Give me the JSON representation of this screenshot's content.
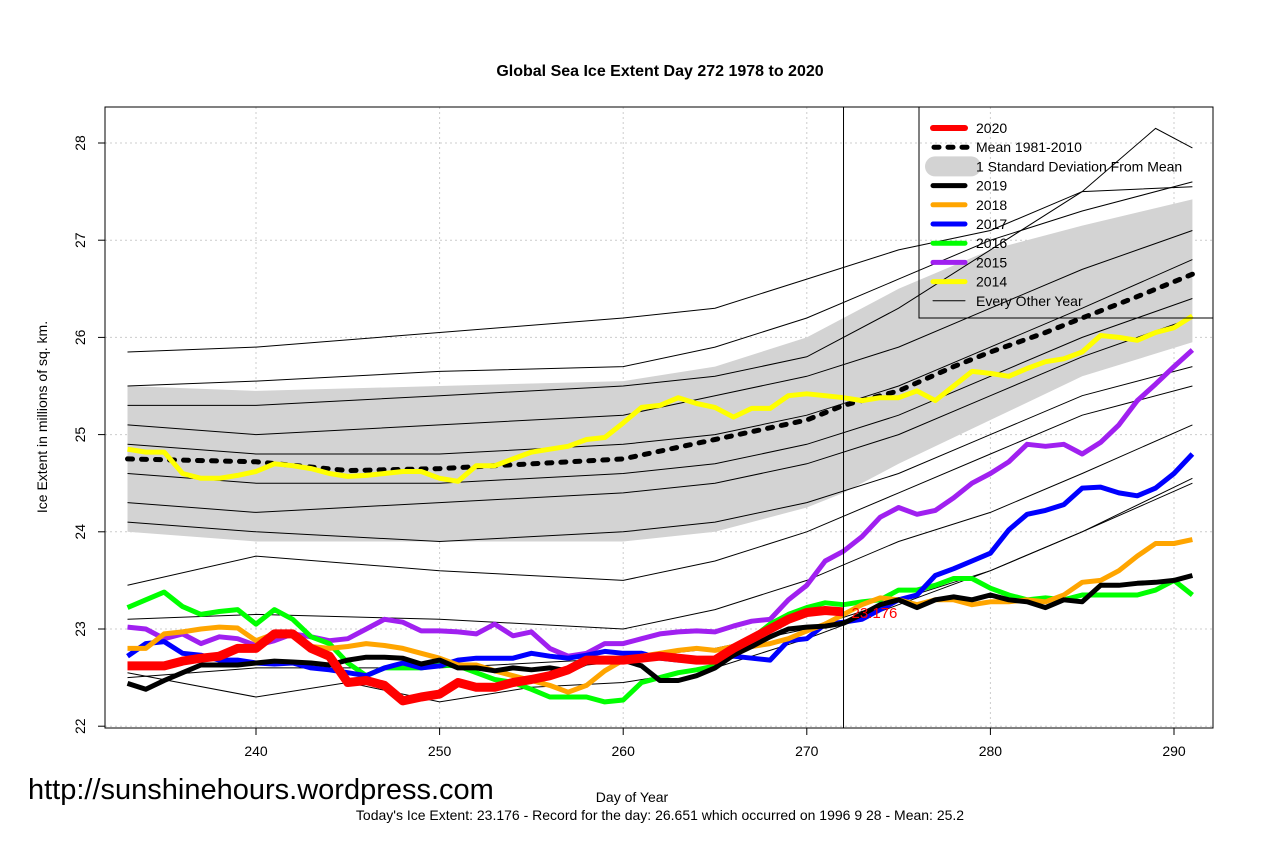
{
  "chart_data": {
    "type": "line",
    "title": "Global Sea Ice Extent Day 272 1978 to 2020",
    "xlabel": "Day of Year",
    "ylabel": "Ice Extent in millions of sq. km.",
    "xlim": [
      232,
      292
    ],
    "ylim": [
      21.95,
      28.35
    ],
    "xticks": [
      240,
      250,
      260,
      270,
      280,
      290
    ],
    "yticks": [
      22,
      23,
      24,
      25,
      26,
      27,
      28
    ],
    "grid": true,
    "legend_position": "top-right",
    "vline_day": 272,
    "annotation": {
      "text": "23.176",
      "x": 272,
      "y": 23.176,
      "color": "#ff0000"
    },
    "footer": "Today's Ice Extent: 23.176  - Record for the day: 26.651 which occurred on 1996 9 28  - Mean: 25.2",
    "watermark": "http://sunshinehours.wordpress.com",
    "legend": [
      {
        "label": "2020",
        "color": "#ff0000",
        "style": "thick"
      },
      {
        "label": "Mean 1981-2010",
        "color": "#000000",
        "style": "dotted"
      },
      {
        "label": "1 Standard Deviation From Mean",
        "color": "#d3d3d3",
        "style": "band"
      },
      {
        "label": "2019",
        "color": "#000000",
        "style": "line"
      },
      {
        "label": "2018",
        "color": "#ffa500",
        "style": "line"
      },
      {
        "label": "2017",
        "color": "#0000ff",
        "style": "line"
      },
      {
        "label": "2016",
        "color": "#00ff00",
        "style": "line"
      },
      {
        "label": "2015",
        "color": "#a020f0",
        "style": "line"
      },
      {
        "label": "2014",
        "color": "#ffff00",
        "style": "line"
      },
      {
        "label": "Every Other Year",
        "color": "#000000",
        "style": "thin"
      }
    ],
    "sd_band": {
      "x": [
        233,
        240,
        250,
        260,
        265,
        270,
        272,
        275,
        280,
        285,
        291
      ],
      "upper": [
        25.5,
        25.45,
        25.5,
        25.55,
        25.7,
        26.0,
        26.2,
        26.5,
        26.9,
        27.15,
        27.42
      ],
      "lower": [
        24.0,
        23.9,
        23.9,
        23.9,
        24.0,
        24.25,
        24.4,
        24.7,
        25.15,
        25.6,
        25.95
      ]
    },
    "mean": {
      "x": [
        233,
        240,
        245,
        250,
        255,
        260,
        265,
        270,
        272,
        275,
        278,
        280,
        283,
        285,
        288,
        291
      ],
      "y": [
        24.75,
        24.72,
        24.63,
        24.65,
        24.7,
        24.75,
        24.95,
        25.15,
        25.3,
        25.45,
        25.7,
        25.85,
        26.05,
        26.2,
        26.42,
        26.65
      ]
    },
    "other_years": [
      {
        "x": [
          233,
          240,
          250,
          260,
          265,
          270,
          275,
          280,
          285,
          291
        ],
        "y": [
          25.85,
          25.9,
          26.05,
          26.2,
          26.3,
          26.6,
          26.9,
          27.1,
          27.5,
          27.55
        ]
      },
      {
        "x": [
          233,
          240,
          250,
          260,
          265,
          270,
          275,
          280,
          285,
          291
        ],
        "y": [
          25.5,
          25.55,
          25.65,
          25.7,
          25.9,
          26.2,
          26.6,
          27.0,
          27.3,
          27.6
        ]
      },
      {
        "x": [
          233,
          240,
          250,
          260,
          265,
          270,
          275,
          280,
          285,
          289,
          291
        ],
        "y": [
          25.3,
          25.3,
          25.4,
          25.5,
          25.6,
          25.8,
          26.3,
          26.9,
          27.5,
          28.15,
          27.95
        ]
      },
      {
        "x": [
          233,
          240,
          250,
          260,
          265,
          270,
          275,
          280,
          285,
          291
        ],
        "y": [
          25.1,
          25.0,
          25.1,
          25.2,
          25.4,
          25.6,
          25.9,
          26.3,
          26.7,
          27.1
        ]
      },
      {
        "x": [
          233,
          240,
          250,
          260,
          265,
          270,
          275,
          280,
          285,
          291
        ],
        "y": [
          24.9,
          24.8,
          24.8,
          24.9,
          25.0,
          25.2,
          25.5,
          25.9,
          26.3,
          26.8
        ]
      },
      {
        "x": [
          233,
          240,
          250,
          260,
          265,
          270,
          275,
          280,
          285,
          291
        ],
        "y": [
          24.6,
          24.5,
          24.5,
          24.6,
          24.7,
          24.9,
          25.2,
          25.6,
          26.0,
          26.4
        ]
      },
      {
        "x": [
          233,
          240,
          250,
          260,
          265,
          270,
          275,
          280,
          285,
          291
        ],
        "y": [
          24.3,
          24.2,
          24.3,
          24.4,
          24.5,
          24.7,
          25.0,
          25.4,
          25.8,
          26.2
        ]
      },
      {
        "x": [
          233,
          240,
          250,
          260,
          265,
          270,
          275,
          280,
          285,
          291
        ],
        "y": [
          24.1,
          24.0,
          23.9,
          24.0,
          24.1,
          24.3,
          24.6,
          25.0,
          25.4,
          25.7
        ]
      },
      {
        "x": [
          233,
          240,
          250,
          260,
          265,
          270,
          275,
          280,
          285,
          291
        ],
        "y": [
          23.45,
          23.75,
          23.6,
          23.5,
          23.7,
          24.0,
          24.4,
          24.8,
          25.2,
          25.5
        ]
      },
      {
        "x": [
          233,
          240,
          250,
          260,
          265,
          270,
          275,
          280,
          285,
          291
        ],
        "y": [
          23.1,
          23.15,
          23.1,
          23.0,
          23.2,
          23.5,
          23.9,
          24.2,
          24.6,
          25.1
        ]
      },
      {
        "x": [
          233,
          240,
          245,
          250,
          255,
          260,
          265,
          270,
          275,
          280,
          285,
          291
        ],
        "y": [
          22.55,
          22.3,
          22.45,
          22.25,
          22.4,
          22.45,
          22.6,
          22.9,
          23.25,
          23.6,
          24.0,
          24.55
        ]
      },
      {
        "x": [
          233,
          240,
          250,
          260,
          265,
          270,
          275,
          280,
          285,
          291
        ],
        "y": [
          22.5,
          22.6,
          22.6,
          22.7,
          22.8,
          23.0,
          23.3,
          23.6,
          24.0,
          24.5
        ]
      }
    ],
    "series": [
      {
        "name": "2020",
        "color": "#ff0000",
        "width": 9,
        "x0": 233,
        "values": [
          22.62,
          22.62,
          22.62,
          22.67,
          22.7,
          22.72,
          22.8,
          22.8,
          22.95,
          22.95,
          22.8,
          22.72,
          22.45,
          22.47,
          22.42,
          22.26,
          22.3,
          22.33,
          22.45,
          22.4,
          22.4,
          22.45,
          22.48,
          22.52,
          22.58,
          22.68,
          22.68,
          22.68,
          22.7,
          22.72,
          22.7,
          22.68,
          22.68,
          22.8,
          22.9,
          23.0,
          23.1,
          23.17,
          23.19,
          23.176
        ]
      },
      {
        "name": "2019",
        "color": "#000000",
        "width": 5,
        "x0": 233,
        "values": [
          22.44,
          22.38,
          22.47,
          22.55,
          22.63,
          22.63,
          22.63,
          22.65,
          22.67,
          22.66,
          22.65,
          22.63,
          22.68,
          22.71,
          22.71,
          22.7,
          22.64,
          22.68,
          22.6,
          22.6,
          22.57,
          22.6,
          22.58,
          22.6,
          22.57,
          22.65,
          22.67,
          22.68,
          22.62,
          22.47,
          22.47,
          22.52,
          22.6,
          22.73,
          22.82,
          22.92,
          23.0,
          23.02,
          23.03,
          23.06,
          23.15,
          23.25,
          23.3,
          23.22,
          23.3,
          23.33,
          23.3,
          23.35,
          23.3,
          23.28,
          23.22,
          23.3,
          23.28,
          23.45,
          23.45,
          23.47,
          23.48,
          23.5,
          23.55
        ]
      },
      {
        "name": "2018",
        "color": "#ffa500",
        "width": 5,
        "x0": 233,
        "values": [
          22.8,
          22.8,
          22.95,
          22.97,
          23.0,
          23.02,
          23.01,
          22.88,
          22.95,
          22.95,
          22.82,
          22.8,
          22.82,
          22.85,
          22.83,
          22.8,
          22.75,
          22.7,
          22.63,
          22.63,
          22.57,
          22.52,
          22.47,
          22.42,
          22.35,
          22.42,
          22.57,
          22.68,
          22.72,
          22.75,
          22.78,
          22.8,
          22.78,
          22.82,
          22.82,
          22.85,
          22.9,
          22.98,
          23.05,
          23.15,
          23.25,
          23.32,
          23.3,
          23.25,
          23.3,
          23.3,
          23.25,
          23.28,
          23.28,
          23.3,
          23.28,
          23.35,
          23.48,
          23.5,
          23.6,
          23.75,
          23.88,
          23.88,
          23.92
        ]
      },
      {
        "name": "2017",
        "color": "#0000ff",
        "width": 5,
        "x0": 233,
        "values": [
          22.72,
          22.85,
          22.87,
          22.75,
          22.73,
          22.68,
          22.68,
          22.65,
          22.64,
          22.65,
          22.6,
          22.58,
          22.55,
          22.52,
          22.6,
          22.65,
          22.6,
          22.62,
          22.68,
          22.7,
          22.7,
          22.7,
          22.75,
          22.72,
          22.7,
          22.73,
          22.77,
          22.75,
          22.75,
          22.7,
          22.68,
          22.68,
          22.7,
          22.72,
          22.7,
          22.68,
          22.88,
          22.9,
          23.05,
          23.07,
          23.1,
          23.2,
          23.3,
          23.35,
          23.55,
          23.62,
          23.7,
          23.78,
          24.02,
          24.18,
          24.22,
          24.28,
          24.45,
          24.46,
          24.4,
          24.37,
          24.45,
          24.6,
          24.8
        ]
      },
      {
        "name": "2016",
        "color": "#00ff00",
        "width": 5,
        "x0": 233,
        "values": [
          23.22,
          23.3,
          23.38,
          23.23,
          23.15,
          23.18,
          23.2,
          23.05,
          23.2,
          23.1,
          22.92,
          22.85,
          22.65,
          22.52,
          22.6,
          22.6,
          22.6,
          22.63,
          22.62,
          22.55,
          22.48,
          22.45,
          22.38,
          22.3,
          22.3,
          22.3,
          22.25,
          22.27,
          22.45,
          22.5,
          22.55,
          22.58,
          22.62,
          22.75,
          22.9,
          23.05,
          23.15,
          23.22,
          23.27,
          23.25,
          23.28,
          23.3,
          23.4,
          23.4,
          23.45,
          23.52,
          23.52,
          23.42,
          23.35,
          23.3,
          23.32,
          23.3,
          23.35,
          23.35,
          23.35,
          23.35,
          23.4,
          23.5,
          23.35
        ]
      },
      {
        "name": "2015",
        "color": "#a020f0",
        "width": 5,
        "x0": 233,
        "values": [
          23.02,
          23.0,
          22.9,
          22.95,
          22.85,
          22.92,
          22.9,
          22.83,
          22.88,
          22.95,
          22.92,
          22.88,
          22.9,
          23.0,
          23.1,
          23.07,
          22.98,
          22.98,
          22.97,
          22.95,
          23.05,
          22.93,
          22.97,
          22.8,
          22.72,
          22.75,
          22.85,
          22.85,
          22.9,
          22.95,
          22.97,
          22.98,
          22.97,
          23.03,
          23.08,
          23.1,
          23.3,
          23.45,
          23.7,
          23.8,
          23.95,
          24.15,
          24.25,
          24.18,
          24.22,
          24.35,
          24.5,
          24.6,
          24.72,
          24.9,
          24.88,
          24.9,
          24.8,
          24.92,
          25.1,
          25.35,
          25.52,
          25.7,
          25.87
        ]
      },
      {
        "name": "2014",
        "color": "#ffff00",
        "width": 5,
        "x0": 233,
        "values": [
          24.85,
          24.82,
          24.82,
          24.6,
          24.55,
          24.55,
          24.58,
          24.62,
          24.7,
          24.68,
          24.65,
          24.6,
          24.57,
          24.58,
          24.6,
          24.62,
          24.62,
          24.55,
          24.52,
          24.68,
          24.68,
          24.75,
          24.82,
          24.85,
          24.88,
          24.95,
          24.97,
          25.12,
          25.28,
          25.3,
          25.38,
          25.32,
          25.28,
          25.18,
          25.27,
          25.27,
          25.4,
          25.42,
          25.4,
          25.38,
          25.35,
          25.38,
          25.38,
          25.45,
          25.35,
          25.5,
          25.65,
          25.63,
          25.6,
          25.68,
          25.75,
          25.78,
          25.85,
          26.02,
          26.0,
          25.97,
          26.05,
          26.1,
          26.22
        ]
      }
    ]
  }
}
